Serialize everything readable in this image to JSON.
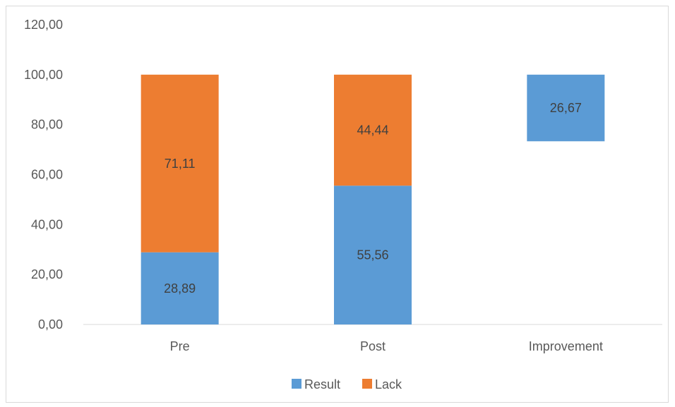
{
  "chart_data": {
    "type": "bar",
    "stacked": true,
    "categories": [
      "Pre",
      "Post",
      "Improvement"
    ],
    "series": [
      {
        "name": "Result",
        "color": "#5b9bd5",
        "values": [
          28.89,
          55.56,
          null
        ],
        "labels": [
          "28,89",
          "55,56",
          null
        ]
      },
      {
        "name": "Lack",
        "color": "#ed7d31",
        "values": [
          71.11,
          44.44,
          null
        ],
        "labels": [
          "71,11",
          "44,44",
          null
        ]
      }
    ],
    "floating": [
      {
        "category": "Improvement",
        "series": "Result",
        "from": 73.33,
        "to": 100.0,
        "label": "26,67"
      }
    ],
    "ylim": [
      0,
      120
    ],
    "yticks": [
      "0,00",
      "20,00",
      "40,00",
      "60,00",
      "80,00",
      "100,00",
      "120,00"
    ],
    "ytick_values": [
      0,
      20,
      40,
      60,
      80,
      100,
      120
    ],
    "legend_position": "bottom",
    "grid": false
  }
}
